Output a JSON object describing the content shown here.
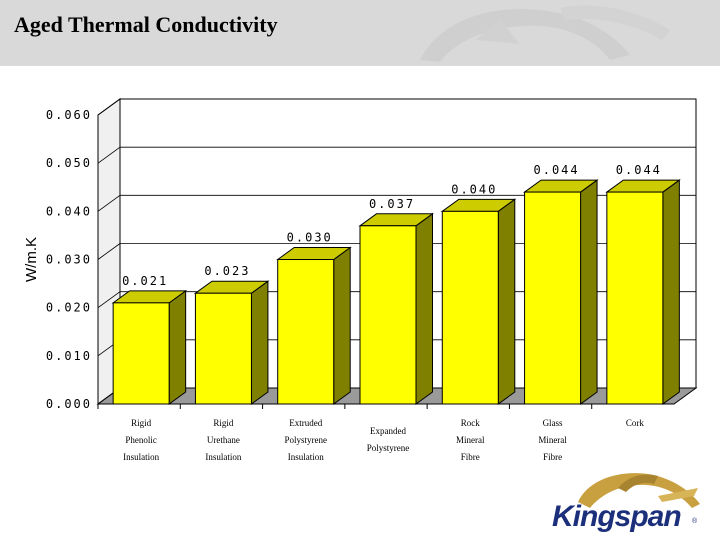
{
  "page": {
    "title": "Aged Thermal Conductivity",
    "brand": "Kingspan",
    "brand_mark": "®"
  },
  "colors": {
    "bar_face": "#ffff00",
    "bar_top": "#cccc00",
    "bar_side": "#808000",
    "wall": "#ffffff",
    "header": "#d9d9d9",
    "brand": "#1c2f7a",
    "brand_gold": "#c8a040"
  },
  "chart_data": {
    "type": "bar",
    "title": "",
    "ylabel": "W/m.K",
    "xlabel": "",
    "ylim": [
      0,
      0.06
    ],
    "y_ticks": [
      {
        "value": 0.0,
        "label": "0.000"
      },
      {
        "value": 0.01,
        "label": "0.010"
      },
      {
        "value": 0.02,
        "label": "0.020"
      },
      {
        "value": 0.03,
        "label": "0.030"
      },
      {
        "value": 0.04,
        "label": "0.040"
      },
      {
        "value": 0.05,
        "label": "0.050"
      },
      {
        "value": 0.06,
        "label": "0.060"
      }
    ],
    "grid": true,
    "categories": [
      [
        "Rigid",
        "Phenolic",
        "Insulation"
      ],
      [
        "Rigid",
        "Urethane",
        "Insulation"
      ],
      [
        "Extruded",
        "Polystyrene",
        "Insulation"
      ],
      [
        "Expanded",
        "Polystyrene"
      ],
      [
        "Rock",
        "Mineral",
        "Fibre"
      ],
      [
        "Glass",
        "Mineral",
        "Fibre"
      ],
      [
        "Cork"
      ]
    ],
    "values": [
      0.021,
      0.023,
      0.03,
      0.037,
      0.04,
      0.044,
      0.044
    ],
    "data_labels": [
      "0.021",
      "0.023",
      "0.030",
      "0.037",
      "0.040",
      "0.044",
      "0.044"
    ]
  }
}
